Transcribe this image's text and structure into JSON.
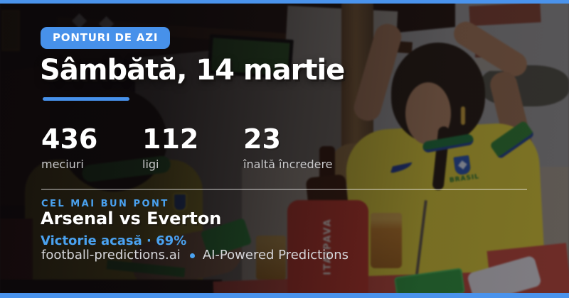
{
  "badge": {
    "label": "PONTURI DE AZI"
  },
  "title": "Sâmbătă, 14 martie",
  "stats": [
    {
      "value": "436",
      "label": "meciuri"
    },
    {
      "value": "112",
      "label": "ligi"
    },
    {
      "value": "23",
      "label": "înaltă încredere"
    }
  ],
  "best_bet": {
    "eyebrow": "CEL MAI BUN PONT",
    "match": "Arsenal vs Everton",
    "prediction": "Victorie acasă · 69%"
  },
  "footer": {
    "site": "football-predictions.ai",
    "tagline": "AI-Powered Predictions"
  },
  "photo_text": {
    "jersey_crest_country": "BRASIL",
    "cooler_brand": "ITAIPAVA"
  },
  "colors": {
    "accent_blue": "#4791EA",
    "light_blue": "#4AA2F0",
    "bar_blue": "#4A93EC"
  }
}
